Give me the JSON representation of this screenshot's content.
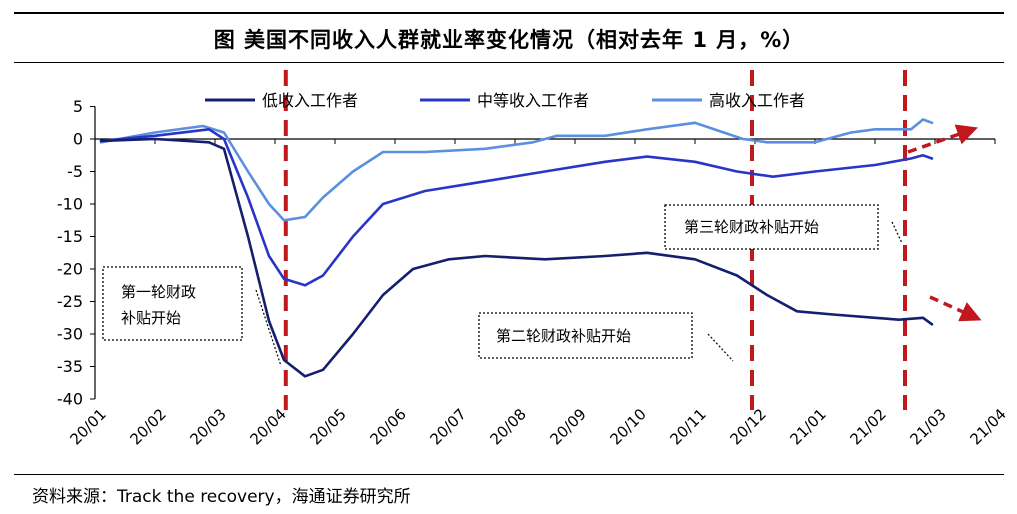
{
  "title": "图  美国不同收入人群就业率变化情况（相对去年 1 月，%）",
  "source": "资料来源：Track the recovery，海通证券研究所",
  "annotations": {
    "first": [
      "第一轮财政",
      "补贴开始"
    ],
    "second": "第二轮财政补贴开始",
    "third": "第三轮财政补贴开始"
  },
  "colors": {
    "low": "#141f6e",
    "mid": "#2a35c8",
    "high": "#5b8fe0",
    "marker": "#c0181d"
  },
  "chart_data": {
    "type": "line",
    "title": "美国不同收入人群就业率变化情况（相对去年 1 月，%）",
    "xlabel": "",
    "ylabel": "",
    "ylim": [
      -40,
      5
    ],
    "yticks": [
      5,
      0,
      -5,
      -10,
      -15,
      -20,
      -25,
      -30,
      -35,
      -40
    ],
    "xticks": [
      "20/01",
      "20/02",
      "20/03",
      "20/04",
      "20/05",
      "20/06",
      "20/07",
      "20/08",
      "20/09",
      "20/10",
      "20/11",
      "20/12",
      "21/01",
      "21/02",
      "21/03",
      "21/04"
    ],
    "grid": false,
    "legend": "top",
    "stimulus_markers": [
      "20/04",
      "20/12",
      "21/03"
    ],
    "series": [
      {
        "name": "低收入工作者",
        "x": [
          "20/01",
          "20/02",
          "20/03",
          "20/03",
          "20/04",
          "20/04",
          "20/04",
          "20/05",
          "20/05",
          "20/06",
          "20/06",
          "20/07",
          "20/07",
          "20/08",
          "20/09",
          "20/10",
          "20/11",
          "20/12",
          "20/12",
          "21/01",
          "21/01",
          "21/02",
          "21/03",
          "21/03",
          "21/04",
          "21/04"
        ],
        "x_offset_months": [
          0.1,
          1,
          1.9,
          2.15,
          2.55,
          2.9,
          3.15,
          3.5,
          3.8,
          4.3,
          4.8,
          5.3,
          5.9,
          6.5,
          7.5,
          8.5,
          9.2,
          10,
          10.7,
          11.2,
          11.7,
          12.3,
          13,
          13.4,
          13.8,
          13.95
        ],
        "values": [
          -0.3,
          0,
          -0.5,
          -1.5,
          -15,
          -28,
          -34,
          -36.5,
          -35.5,
          -30,
          -24,
          -20,
          -18.5,
          -18,
          -18.5,
          -18,
          -17.5,
          -18.5,
          -21,
          -24,
          -26.5,
          -27,
          -27.5,
          -27.8,
          -27.5,
          -28.5
        ]
      },
      {
        "name": "中等收入工作者",
        "x": [
          "20/01",
          "20/02",
          "20/03",
          "20/03",
          "20/04",
          "20/04",
          "20/04",
          "20/05",
          "20/05",
          "20/06",
          "20/06",
          "20/07",
          "20/08",
          "20/09",
          "20/10",
          "20/11",
          "20/12",
          "21/01",
          "21/01",
          "21/02",
          "21/03",
          "21/04",
          "21/04",
          "21/04"
        ],
        "x_offset_months": [
          0.1,
          1,
          1.9,
          2.15,
          2.55,
          2.9,
          3.15,
          3.5,
          3.8,
          4.3,
          4.8,
          5.5,
          6.5,
          7.5,
          8.5,
          9.2,
          10,
          10.7,
          11.3,
          12,
          13,
          13.6,
          13.8,
          13.95
        ],
        "values": [
          -0.3,
          0.5,
          1.5,
          0,
          -9,
          -18,
          -21.5,
          -22.5,
          -21,
          -15,
          -10,
          -8,
          -6.5,
          -5,
          -3.5,
          -2.7,
          -3.5,
          -5,
          -5.8,
          -5,
          -4,
          -3,
          -2.5,
          -3
        ]
      },
      {
        "name": "高收入工作者",
        "x": [
          "20/01",
          "20/02",
          "20/03",
          "20/03",
          "20/04",
          "20/04",
          "20/04",
          "20/05",
          "20/05",
          "20/06",
          "20/06",
          "20/07",
          "20/08",
          "20/09",
          "20/09",
          "20/10",
          "20/11",
          "20/12",
          "21/01",
          "21/01",
          "21/02",
          "21/03",
          "21/03",
          "21/04",
          "21/04",
          "21/04"
        ],
        "x_offset_months": [
          0.1,
          1,
          1.8,
          2.15,
          2.55,
          2.9,
          3.15,
          3.5,
          3.8,
          4.3,
          4.8,
          5.5,
          6.5,
          7.3,
          7.7,
          8.5,
          9.2,
          10,
          10.8,
          11.2,
          12,
          12.6,
          13,
          13.6,
          13.8,
          13.95
        ],
        "values": [
          -0.5,
          1,
          2,
          1,
          -5,
          -10,
          -12.5,
          -12,
          -9,
          -5,
          -2,
          -2,
          -1.5,
          -0.5,
          0.5,
          0.5,
          1.5,
          2.5,
          0,
          -0.5,
          -0.5,
          1,
          1.5,
          1.5,
          3,
          2.5
        ]
      }
    ]
  }
}
